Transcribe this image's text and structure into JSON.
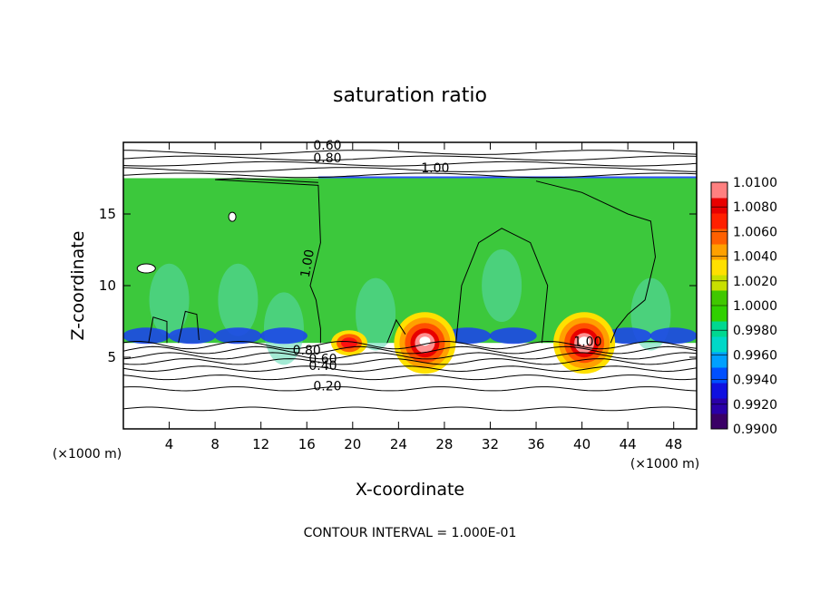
{
  "chart_data": {
    "type": "heatmap",
    "title": "saturation ratio",
    "xlabel": "X-coordinate",
    "ylabel": "Z-coordinate",
    "x_unit": "(×1000 m)",
    "y_unit": "(×1000 m)",
    "xlim": [
      0,
      50
    ],
    "ylim": [
      0,
      20
    ],
    "x_ticks": [
      "4",
      "8",
      "12",
      "16",
      "20",
      "24",
      "28",
      "32",
      "36",
      "40",
      "44",
      "48"
    ],
    "y_ticks": [
      "5",
      "10",
      "15"
    ],
    "footer": "CONTOUR INTERVAL = 1.000E-01",
    "colorbar": {
      "min": 0.99,
      "max": 1.01,
      "labels": [
        "1.0100",
        "1.0080",
        "1.0060",
        "1.0040",
        "1.0020",
        "1.0000",
        "0.9980",
        "0.9960",
        "0.9940",
        "0.9920",
        "0.9900"
      ],
      "colors": [
        "#3a0066",
        "#2a00a8",
        "#1010e0",
        "#0050ff",
        "#00a0ff",
        "#00d8c8",
        "#00d890",
        "#30d000",
        "#40c800",
        "#c8e000",
        "#ffe000",
        "#ffa000",
        "#ff6000",
        "#ff2000",
        "#e80000",
        "#ff8080"
      ]
    },
    "contour_labels": [
      "0.60",
      "0.80",
      "1.00",
      "1.00",
      "1.00",
      "0.80",
      "0.60",
      "0.40",
      "0.20"
    ],
    "layer": {
      "base_z": 6,
      "top_z": 17.5
    },
    "features": {
      "warm_cells": [
        {
          "x": 26.3,
          "z": 6.2,
          "max": 1.01
        },
        {
          "x": 40.2,
          "z": 6.2,
          "max": 1.01
        },
        {
          "x": 19.7,
          "z": 6.0,
          "max": 1.008
        }
      ],
      "cold_spots": [
        {
          "x": 9.5,
          "z": 14.8
        },
        {
          "x": 2.0,
          "z": 11.2
        }
      ]
    }
  }
}
